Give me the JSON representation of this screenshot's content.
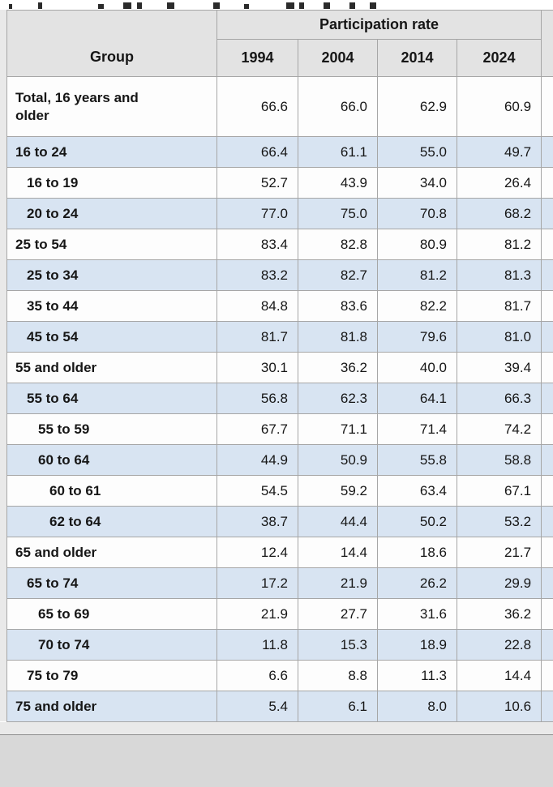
{
  "colors": {
    "stripe": "#d8e4f2",
    "header_bg": "#e3e3e3",
    "cell_border": "#a6a6a6",
    "outer_border": "#8d8d8d",
    "gutter": "#e9e9e9",
    "next_section": "#d8d8d8"
  },
  "chart_data": {
    "type": "table",
    "title": "Participation rate",
    "group_column_header": "Group",
    "columns": [
      "1994",
      "2004",
      "2014",
      "2024"
    ],
    "rows": [
      {
        "label": "Total, 16 years and older",
        "indent": 0,
        "values": [
          "66.6",
          "66.0",
          "62.9",
          "60.9"
        ]
      },
      {
        "label": "16 to 24",
        "indent": 0,
        "values": [
          "66.4",
          "61.1",
          "55.0",
          "49.7"
        ]
      },
      {
        "label": "16 to 19",
        "indent": 1,
        "values": [
          "52.7",
          "43.9",
          "34.0",
          "26.4"
        ]
      },
      {
        "label": "20 to 24",
        "indent": 1,
        "values": [
          "77.0",
          "75.0",
          "70.8",
          "68.2"
        ]
      },
      {
        "label": "25 to 54",
        "indent": 0,
        "values": [
          "83.4",
          "82.8",
          "80.9",
          "81.2"
        ]
      },
      {
        "label": "25 to 34",
        "indent": 1,
        "values": [
          "83.2",
          "82.7",
          "81.2",
          "81.3"
        ]
      },
      {
        "label": "35 to 44",
        "indent": 1,
        "values": [
          "84.8",
          "83.6",
          "82.2",
          "81.7"
        ]
      },
      {
        "label": "45 to 54",
        "indent": 1,
        "values": [
          "81.7",
          "81.8",
          "79.6",
          "81.0"
        ]
      },
      {
        "label": "55 and older",
        "indent": 0,
        "values": [
          "30.1",
          "36.2",
          "40.0",
          "39.4"
        ]
      },
      {
        "label": "55 to 64",
        "indent": 1,
        "values": [
          "56.8",
          "62.3",
          "64.1",
          "66.3"
        ]
      },
      {
        "label": "55 to 59",
        "indent": 2,
        "values": [
          "67.7",
          "71.1",
          "71.4",
          "74.2"
        ]
      },
      {
        "label": "60 to 64",
        "indent": 2,
        "values": [
          "44.9",
          "50.9",
          "55.8",
          "58.8"
        ]
      },
      {
        "label": "60 to 61",
        "indent": 3,
        "values": [
          "54.5",
          "59.2",
          "63.4",
          "67.1"
        ]
      },
      {
        "label": "62 to 64",
        "indent": 3,
        "values": [
          "38.7",
          "44.4",
          "50.2",
          "53.2"
        ]
      },
      {
        "label": "65 and older",
        "indent": 0,
        "values": [
          "12.4",
          "14.4",
          "18.6",
          "21.7"
        ]
      },
      {
        "label": "65 to 74",
        "indent": 1,
        "values": [
          "17.2",
          "21.9",
          "26.2",
          "29.9"
        ]
      },
      {
        "label": "65 to 69",
        "indent": 2,
        "values": [
          "21.9",
          "27.7",
          "31.6",
          "36.2"
        ]
      },
      {
        "label": "70 to 74",
        "indent": 2,
        "values": [
          "11.8",
          "15.3",
          "18.9",
          "22.8"
        ]
      },
      {
        "label": "75 to 79",
        "indent": 1,
        "values": [
          "6.6",
          "8.8",
          "11.3",
          "14.4"
        ]
      },
      {
        "label": "75 and older",
        "indent": 0,
        "values": [
          "5.4",
          "6.1",
          "8.0",
          "10.6"
        ]
      }
    ]
  }
}
